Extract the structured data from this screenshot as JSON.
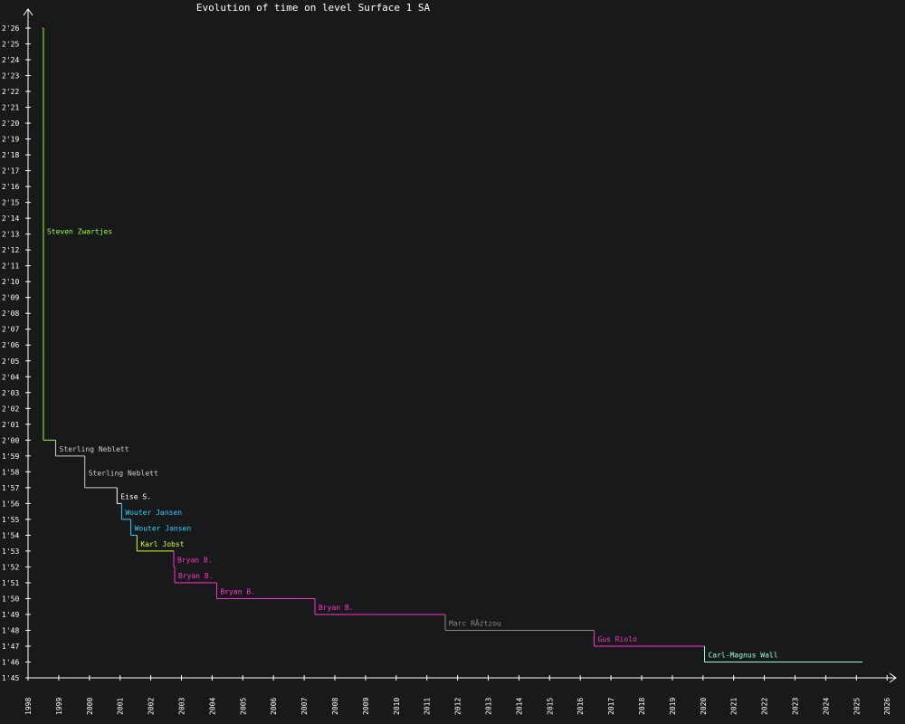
{
  "chart_data": {
    "type": "line",
    "title": "Evolution of time on level Surface 1 SA",
    "xlabel": "",
    "ylabel": "",
    "x_unit": "year",
    "xlim": [
      1998,
      2026.5
    ],
    "ylim_seconds": [
      105,
      146
    ],
    "grid": false,
    "x_ticks": [
      "1998",
      "1999",
      "2000",
      "2001",
      "2002",
      "2003",
      "2004",
      "2005",
      "2006",
      "2007",
      "2008",
      "2009",
      "2010",
      "2011",
      "2012",
      "2013",
      "2014",
      "2015",
      "2016",
      "2017",
      "2018",
      "2019",
      "2020",
      "2021",
      "2022",
      "2023",
      "2024",
      "2025",
      "2026"
    ],
    "y_ticks": [
      "1'45",
      "1'46",
      "1'47",
      "1'48",
      "1'49",
      "1'50",
      "1'51",
      "1'52",
      "1'53",
      "1'54",
      "1'55",
      "1'56",
      "1'57",
      "1'58",
      "1'59",
      "2'00",
      "2'01",
      "2'02",
      "2'03",
      "2'04",
      "2'05",
      "2'06",
      "2'07",
      "2'08",
      "2'09",
      "2'10",
      "2'11",
      "2'12",
      "2'13",
      "2'14",
      "2'15",
      "2'16",
      "2'17",
      "2'18",
      "2'19",
      "2'20",
      "2'21",
      "2'22",
      "2'23",
      "2'24",
      "2'25",
      "2'26"
    ],
    "records": [
      {
        "player": "",
        "time": "2'26",
        "seconds": 146,
        "start": 1998.45,
        "end": 1998.5,
        "color": "#ff3333"
      },
      {
        "player": "Steven Zwartjes",
        "time": "2'00",
        "seconds": 120,
        "start": 1998.5,
        "end": 1998.9,
        "color": "#99ff33"
      },
      {
        "player": "Sterling Neblett",
        "time": "1'59",
        "seconds": 119,
        "start": 1998.9,
        "end": 1999.85,
        "color": "#cccccc"
      },
      {
        "player": "Sterling Neblett",
        "time": "1'57",
        "seconds": 117,
        "start": 1999.85,
        "end": 2000.9,
        "color": "#cccccc"
      },
      {
        "player": "Eise S.",
        "time": "1'56",
        "seconds": 116,
        "start": 2000.9,
        "end": 2001.05,
        "color": "#ffffff"
      },
      {
        "player": "Wouter Jansen",
        "time": "1'55",
        "seconds": 115,
        "start": 2001.05,
        "end": 2001.35,
        "color": "#33ccff"
      },
      {
        "player": "Wouter Jansen",
        "time": "1'54",
        "seconds": 114,
        "start": 2001.35,
        "end": 2001.55,
        "color": "#33ccff"
      },
      {
        "player": "Karl Jobst",
        "time": "1'53",
        "seconds": 113,
        "start": 2001.55,
        "end": 2002.75,
        "color": "#ccff33"
      },
      {
        "player": "Bryan B.",
        "time": "1'52",
        "seconds": 112,
        "start": 2002.75,
        "end": 2002.78,
        "color": "#ff33cc"
      },
      {
        "player": "Bryan B.",
        "time": "1'51",
        "seconds": 111,
        "start": 2002.78,
        "end": 2004.15,
        "color": "#ff33cc"
      },
      {
        "player": "Bryan B.",
        "time": "1'50",
        "seconds": 110,
        "start": 2004.15,
        "end": 2007.35,
        "color": "#ff33cc"
      },
      {
        "player": "Bryan B.",
        "time": "1'49",
        "seconds": 109,
        "start": 2007.35,
        "end": 2011.6,
        "color": "#ff33cc"
      },
      {
        "player": "Marc RÃźtzou",
        "time": "1'48",
        "seconds": 108,
        "start": 2011.6,
        "end": 2016.45,
        "color": "#888888"
      },
      {
        "player": "Gus Riolo",
        "time": "1'47",
        "seconds": 107,
        "start": 2016.45,
        "end": 2020.05,
        "color": "#ff33cc"
      },
      {
        "player": "Carl-Magnus Wall",
        "time": "1'46",
        "seconds": 106,
        "start": 2020.05,
        "end": 2025.2,
        "color": "#99ffcc"
      }
    ]
  },
  "colors": {
    "background": "#18191b",
    "axis": "#ffffff",
    "text": "#ffffff"
  }
}
